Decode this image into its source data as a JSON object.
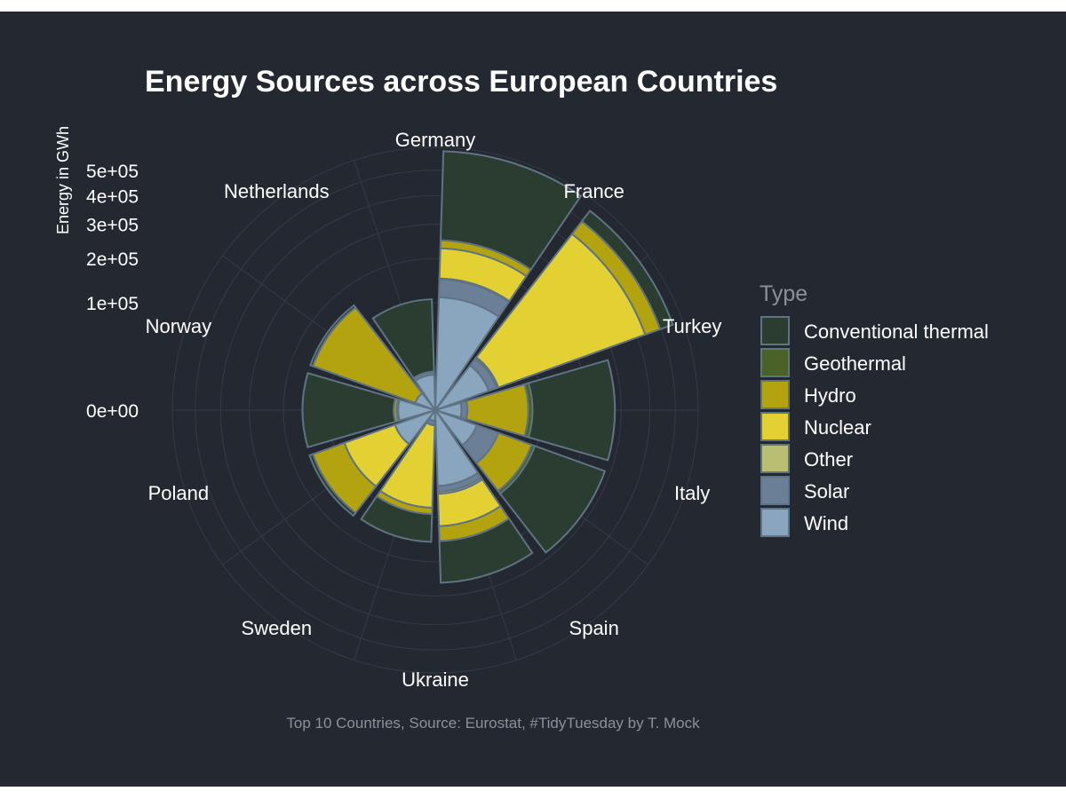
{
  "chart_data": {
    "type": "polar-stacked-bar",
    "title": "Energy Sources across European Countries",
    "ylabel": "Energy in GWh",
    "caption": "Top 10 Countries, Source: Eurostat, #TidyTuesday by T. Mock",
    "legend_title": "Type",
    "legend_position": "right",
    "ylim": [
      0,
      600000
    ],
    "radial_ticks": [
      0,
      100000,
      200000,
      300000,
      400000,
      500000
    ],
    "radial_tick_labels": [
      "0e+00",
      "1e+05",
      "2e+05",
      "3e+05",
      "4e+05",
      "5e+05"
    ],
    "categories": [
      "Germany",
      "France",
      "Turkey",
      "Italy",
      "Spain",
      "Ukraine",
      "Sweden",
      "Poland",
      "Norway",
      "Netherlands"
    ],
    "types": [
      {
        "name": "Wind",
        "color": "#8aa6bf"
      },
      {
        "name": "Solar",
        "color": "#6b8097"
      },
      {
        "name": "Other",
        "color": "#b8bf72"
      },
      {
        "name": "Nuclear",
        "color": "#e3d134"
      },
      {
        "name": "Hydro",
        "color": "#b3a30f"
      },
      {
        "name": "Geothermal",
        "color": "#4a6228"
      },
      {
        "name": "Conventional thermal",
        "color": "#2b3d30"
      }
    ],
    "legend_order": [
      "Conventional thermal",
      "Geothermal",
      "Hydro",
      "Nuclear",
      "Other",
      "Solar",
      "Wind"
    ],
    "series": [
      {
        "name": "Wind",
        "values": [
          111000,
          28000,
          6000,
          17000,
          50000,
          1000,
          16000,
          12000,
          4000,
          11000
        ]
      },
      {
        "name": "Solar",
        "values": [
          38000,
          9000,
          3000,
          22000,
          8000,
          1000,
          0,
          0,
          0,
          2000
        ]
      },
      {
        "name": "Other",
        "values": [
          2000,
          2000,
          0,
          0,
          3000,
          0,
          0,
          1000,
          0,
          0
        ]
      },
      {
        "name": "Nuclear",
        "values": [
          77000,
          393000,
          0,
          0,
          56000,
          81000,
          65000,
          0,
          0,
          0
        ]
      },
      {
        "name": "Hydro",
        "values": [
          23000,
          64000,
          66000,
          52000,
          32000,
          11000,
          66000,
          2000,
          143000,
          0
        ]
      },
      {
        "name": "Geothermal",
        "values": [
          0,
          0,
          7000,
          6000,
          0,
          0,
          0,
          0,
          0,
          0
        ]
      },
      {
        "name": "Conventional thermal",
        "values": [
          332000,
          57000,
          198000,
          185000,
          110000,
          57000,
          8000,
          138000,
          6000,
          94000
        ]
      }
    ]
  }
}
